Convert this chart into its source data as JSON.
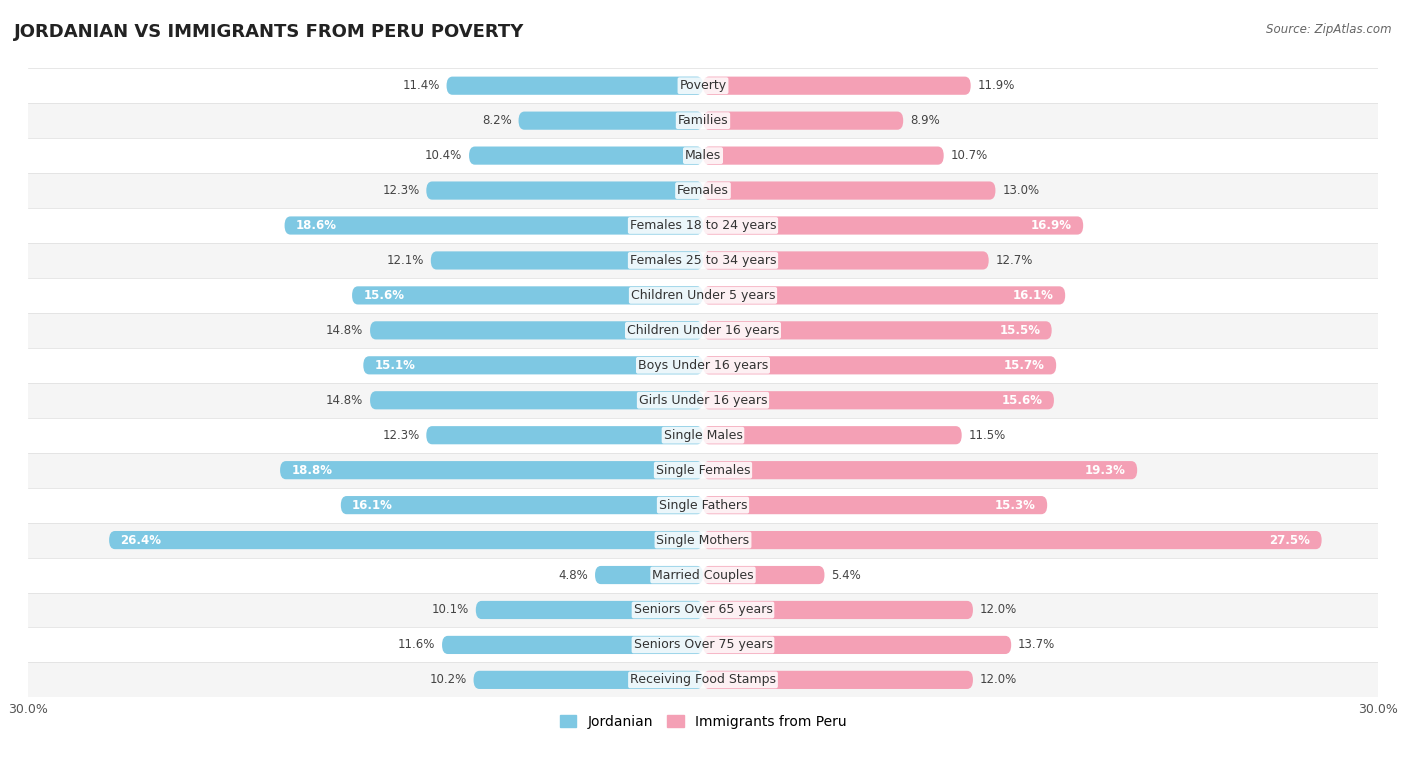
{
  "title": "JORDANIAN VS IMMIGRANTS FROM PERU POVERTY",
  "source": "Source: ZipAtlas.com",
  "categories": [
    "Poverty",
    "Families",
    "Males",
    "Females",
    "Females 18 to 24 years",
    "Females 25 to 34 years",
    "Children Under 5 years",
    "Children Under 16 years",
    "Boys Under 16 years",
    "Girls Under 16 years",
    "Single Males",
    "Single Females",
    "Single Fathers",
    "Single Mothers",
    "Married Couples",
    "Seniors Over 65 years",
    "Seniors Over 75 years",
    "Receiving Food Stamps"
  ],
  "jordanian": [
    11.4,
    8.2,
    10.4,
    12.3,
    18.6,
    12.1,
    15.6,
    14.8,
    15.1,
    14.8,
    12.3,
    18.8,
    16.1,
    26.4,
    4.8,
    10.1,
    11.6,
    10.2
  ],
  "peru": [
    11.9,
    8.9,
    10.7,
    13.0,
    16.9,
    12.7,
    16.1,
    15.5,
    15.7,
    15.6,
    11.5,
    19.3,
    15.3,
    27.5,
    5.4,
    12.0,
    13.7,
    12.0
  ],
  "jordanian_color": "#7ec8e3",
  "peru_color": "#f4a0b5",
  "row_color_odd": "#f5f5f5",
  "row_color_even": "#ffffff",
  "xlim": 30.0,
  "bar_height": 0.52,
  "legend_jordanian": "Jordanian",
  "legend_peru": "Immigrants from Peru",
  "title_fontsize": 13,
  "label_fontsize": 9,
  "tick_fontsize": 9,
  "value_fontsize": 8.5,
  "value_inside_threshold": 15.0
}
